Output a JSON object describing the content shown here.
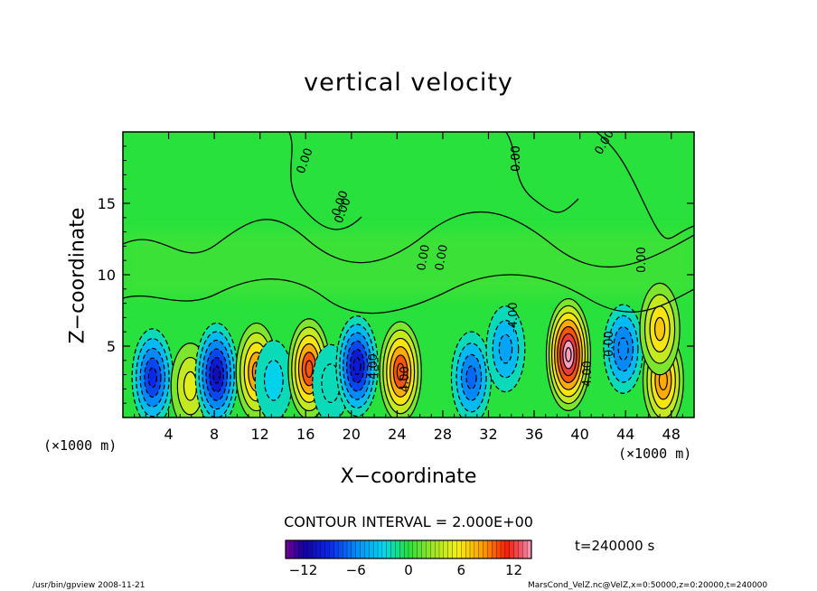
{
  "title": "vertical velocity",
  "xlabel": "X−coordinate",
  "ylabel": "Z−coordinate",
  "x_unit_left": "(×1000 m)",
  "x_unit_right": "(×1000 m)",
  "contour_interval_text": "CONTOUR INTERVAL = 2.000E+00",
  "time_label": "t=240000 s",
  "footer_left": "/usr/bin/gpview  2008-11-21",
  "footer_right": "MarsCond_VelZ.nc@VelZ,x=0:50000,z=0:20000,t=240000",
  "chart_data": {
    "type": "heatmap",
    "title": "vertical velocity",
    "xlabel": "X-coordinate",
    "ylabel": "Z-coordinate",
    "x_units": "×1000 m",
    "xlim": [
      0,
      50
    ],
    "ylim": [
      0,
      20
    ],
    "x_ticks": [
      "4",
      "8",
      "12",
      "16",
      "20",
      "24",
      "28",
      "32",
      "36",
      "40",
      "44",
      "48"
    ],
    "y_ticks": [
      "5",
      "10",
      "15"
    ],
    "contour_interval": 2.0,
    "contour_labels": [
      "0.00",
      "0.00",
      "0.00",
      "0.00",
      "0.00",
      "0.00",
      "0.00",
      "0.00",
      "0.00",
      "-4.00",
      "4.00",
      "4.00",
      "4.00",
      "0.00"
    ],
    "colorbar": {
      "min": -14,
      "max": 14,
      "ticks": [
        "−12",
        "−6",
        "0",
        "6",
        "12"
      ],
      "tick_values": [
        -12,
        -6,
        0,
        6,
        12
      ]
    },
    "cells": [
      {
        "x": 2.6,
        "z": 2.8,
        "w": -9
      },
      {
        "x": 5.9,
        "z": 2.2,
        "w": 5
      },
      {
        "x": 8.2,
        "z": 3.0,
        "w": -11
      },
      {
        "x": 11.7,
        "z": 3.2,
        "w": 9
      },
      {
        "x": 13.2,
        "z": 2.6,
        "w": -3
      },
      {
        "x": 16.3,
        "z": 3.4,
        "w": 10
      },
      {
        "x": 18.2,
        "z": 2.4,
        "w": -2
      },
      {
        "x": 20.5,
        "z": 3.6,
        "w": -10
      },
      {
        "x": 24.3,
        "z": 3.2,
        "w": 10
      },
      {
        "x": 30.5,
        "z": 2.8,
        "w": -7
      },
      {
        "x": 33.5,
        "z": 4.8,
        "w": -5
      },
      {
        "x": 39.0,
        "z": 4.4,
        "w": 14
      },
      {
        "x": 43.8,
        "z": 4.8,
        "w": -6
      },
      {
        "x": 47.3,
        "z": 2.6,
        "w": 8
      },
      {
        "x": 47.0,
        "z": 6.2,
        "w": 7
      }
    ]
  }
}
